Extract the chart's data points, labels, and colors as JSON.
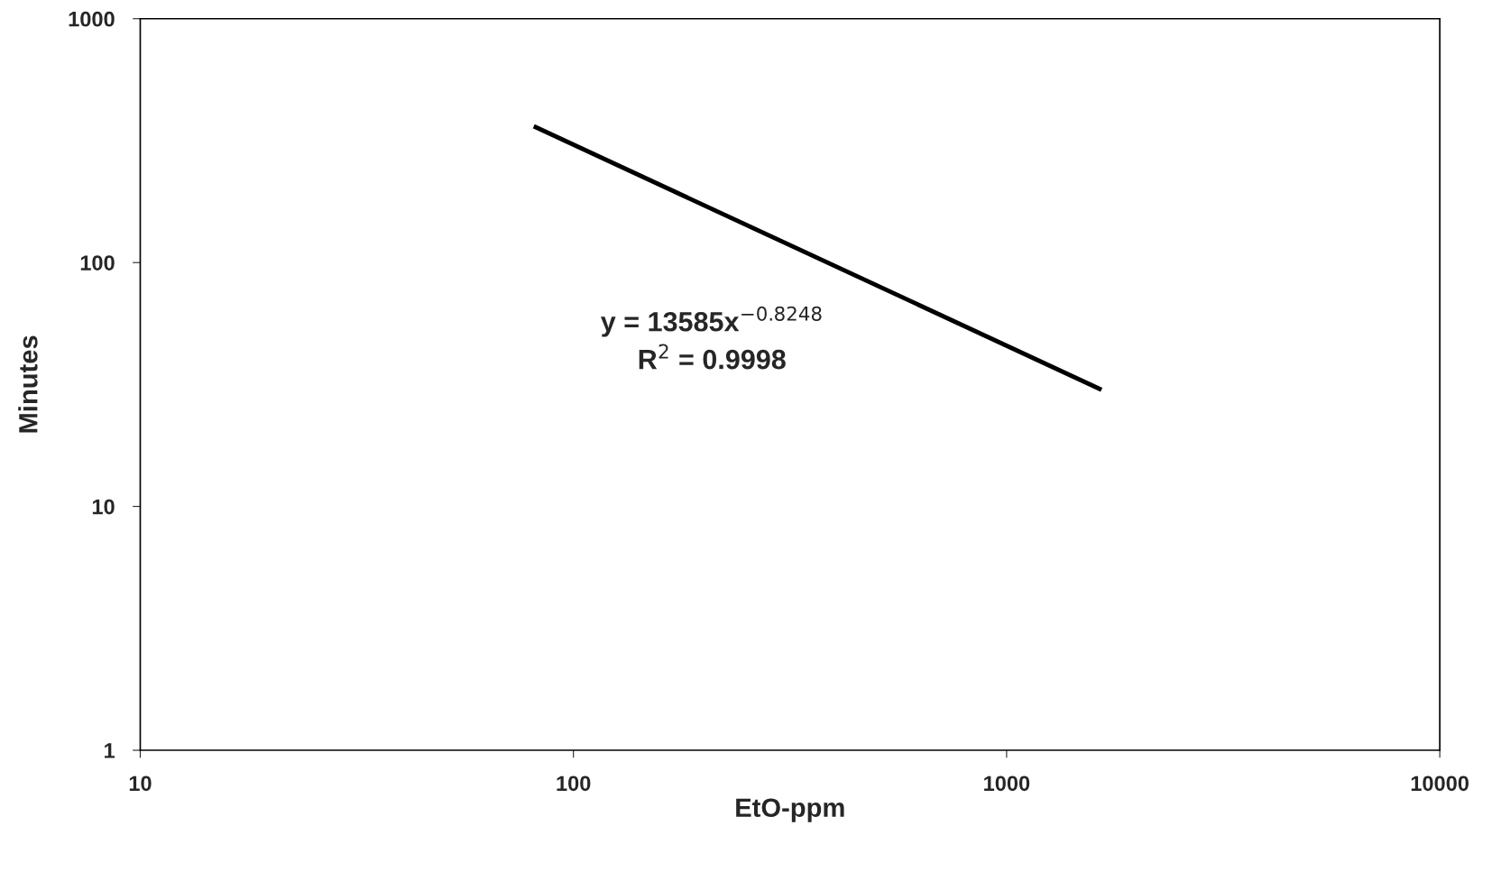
{
  "chart_data": {
    "type": "line",
    "xlabel": "EtO-ppm",
    "ylabel": "Minutes",
    "x": [
      81,
      1656
    ],
    "series": [
      {
        "color": "#000000",
        "values": [
          362,
          30.1
        ]
      }
    ],
    "log": "xy",
    "grid": false,
    "marker": "none",
    "line_style": "solid",
    "xlim": [
      10,
      10000
    ],
    "xticks": [
      10,
      100,
      1000,
      10000
    ],
    "ylim": [
      1,
      1000
    ],
    "yticks": [
      1,
      10,
      100,
      1000
    ],
    "annotations": [
      "y = 13585x$^{−0.8248}$\nR$^{2}$ = 0.9998"
    ]
  }
}
